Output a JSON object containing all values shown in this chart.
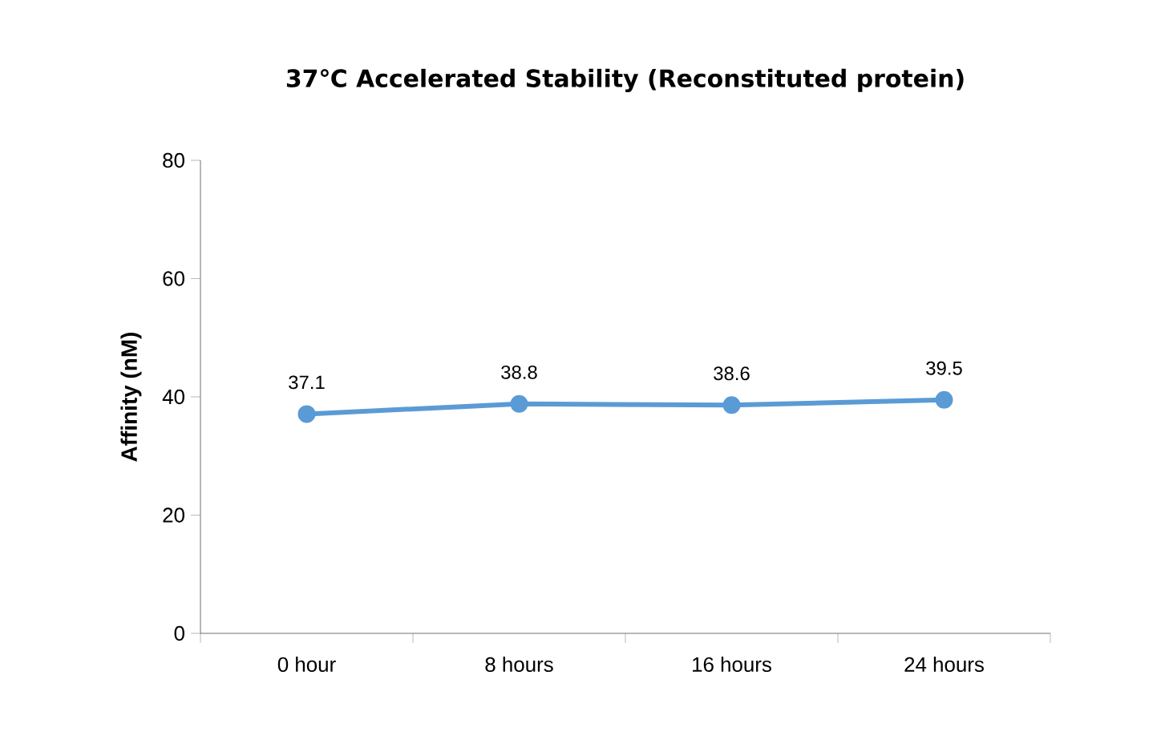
{
  "chart_data": {
    "type": "line",
    "title": "37℃ Accelerated Stability (Reconstituted protein)",
    "ylabel": "Affinity (nM)",
    "categories": [
      "0 hour",
      "8 hours",
      "16 hours",
      "24 hours"
    ],
    "values": [
      37.1,
      38.8,
      38.6,
      39.5
    ],
    "color": "#5b9bd5",
    "marker": "circle",
    "data_labels": true,
    "ylim": [
      0,
      80
    ],
    "yticks": [
      0,
      20,
      40,
      60,
      80
    ],
    "grid": false,
    "legend": false
  }
}
